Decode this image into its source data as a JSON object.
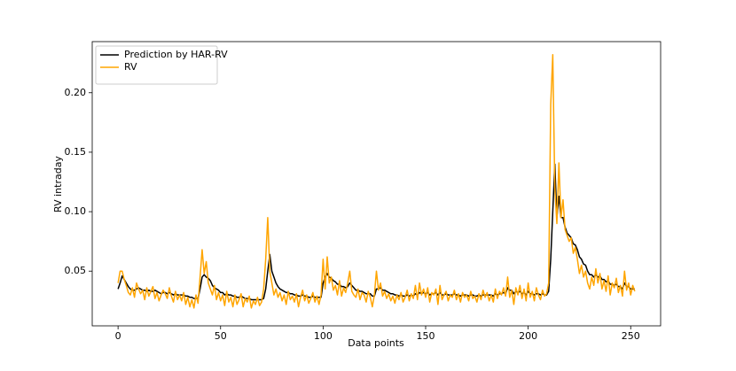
{
  "chart_data": {
    "type": "line",
    "xlabel": "Data points",
    "ylabel": "RV intraday",
    "legend": "upper left",
    "xlim": [
      -12.6,
      264.6
    ],
    "ylim": [
      0.004,
      0.243
    ],
    "xticks": [
      0,
      50,
      100,
      150,
      200,
      250
    ],
    "yticks": [
      0.05,
      {
        "value": 0.1,
        "label": "0.10"
      },
      0.15,
      {
        "value": 0.2,
        "label": "0.20"
      }
    ],
    "x": [
      0,
      1,
      2,
      3,
      4,
      5,
      6,
      7,
      8,
      9,
      10,
      11,
      12,
      13,
      14,
      15,
      16,
      17,
      18,
      19,
      20,
      21,
      22,
      23,
      24,
      25,
      26,
      27,
      28,
      29,
      30,
      31,
      32,
      33,
      34,
      35,
      36,
      37,
      38,
      39,
      40,
      41,
      42,
      43,
      44,
      45,
      46,
      47,
      48,
      49,
      50,
      51,
      52,
      53,
      54,
      55,
      56,
      57,
      58,
      59,
      60,
      61,
      62,
      63,
      64,
      65,
      66,
      67,
      68,
      69,
      70,
      71,
      72,
      73,
      74,
      75,
      76,
      77,
      78,
      79,
      80,
      81,
      82,
      83,
      84,
      85,
      86,
      87,
      88,
      89,
      90,
      91,
      92,
      93,
      94,
      95,
      96,
      97,
      98,
      99,
      100,
      101,
      102,
      103,
      104,
      105,
      106,
      107,
      108,
      109,
      110,
      111,
      112,
      113,
      114,
      115,
      116,
      117,
      118,
      119,
      120,
      121,
      122,
      123,
      124,
      125,
      126,
      127,
      128,
      129,
      130,
      131,
      132,
      133,
      134,
      135,
      136,
      137,
      138,
      139,
      140,
      141,
      142,
      143,
      144,
      145,
      146,
      147,
      148,
      149,
      150,
      151,
      152,
      153,
      154,
      155,
      156,
      157,
      158,
      159,
      160,
      161,
      162,
      163,
      164,
      165,
      166,
      167,
      168,
      169,
      170,
      171,
      172,
      173,
      174,
      175,
      176,
      177,
      178,
      179,
      180,
      181,
      182,
      183,
      184,
      185,
      186,
      187,
      188,
      189,
      190,
      191,
      192,
      193,
      194,
      195,
      196,
      197,
      198,
      199,
      200,
      201,
      202,
      203,
      204,
      205,
      206,
      207,
      208,
      209,
      210,
      211,
      212,
      213,
      214,
      215,
      216,
      217,
      218,
      219,
      220,
      221,
      222,
      223,
      224,
      225,
      226,
      227,
      228,
      229,
      230,
      231,
      232,
      233,
      234,
      235,
      236,
      237,
      238,
      239,
      240,
      241,
      242,
      243,
      244,
      245,
      246,
      247,
      248,
      249,
      250,
      251,
      252
    ],
    "series": [
      {
        "name": "Prediction by HAR-RV",
        "color": "#000000",
        "values": [
          0.035,
          0.04,
          0.046,
          0.043,
          0.04,
          0.037,
          0.035,
          0.034,
          0.034,
          0.035,
          0.036,
          0.035,
          0.034,
          0.034,
          0.033,
          0.034,
          0.033,
          0.033,
          0.034,
          0.033,
          0.032,
          0.031,
          0.032,
          0.032,
          0.031,
          0.032,
          0.031,
          0.03,
          0.031,
          0.03,
          0.03,
          0.03,
          0.03,
          0.029,
          0.029,
          0.028,
          0.028,
          0.027,
          0.027,
          0.027,
          0.035,
          0.045,
          0.047,
          0.045,
          0.044,
          0.042,
          0.038,
          0.036,
          0.035,
          0.034,
          0.032,
          0.032,
          0.03,
          0.031,
          0.03,
          0.03,
          0.029,
          0.029,
          0.028,
          0.028,
          0.029,
          0.028,
          0.027,
          0.027,
          0.027,
          0.026,
          0.026,
          0.026,
          0.026,
          0.026,
          0.026,
          0.027,
          0.035,
          0.05,
          0.064,
          0.05,
          0.045,
          0.04,
          0.037,
          0.035,
          0.034,
          0.033,
          0.032,
          0.032,
          0.031,
          0.031,
          0.03,
          0.03,
          0.029,
          0.029,
          0.03,
          0.029,
          0.029,
          0.028,
          0.028,
          0.029,
          0.028,
          0.028,
          0.028,
          0.028,
          0.04,
          0.045,
          0.048,
          0.045,
          0.044,
          0.042,
          0.041,
          0.039,
          0.039,
          0.037,
          0.037,
          0.036,
          0.037,
          0.04,
          0.038,
          0.036,
          0.034,
          0.034,
          0.033,
          0.033,
          0.032,
          0.031,
          0.031,
          0.031,
          0.029,
          0.029,
          0.035,
          0.035,
          0.036,
          0.034,
          0.034,
          0.033,
          0.032,
          0.031,
          0.031,
          0.03,
          0.03,
          0.029,
          0.03,
          0.029,
          0.029,
          0.03,
          0.029,
          0.03,
          0.029,
          0.031,
          0.03,
          0.032,
          0.031,
          0.032,
          0.031,
          0.032,
          0.03,
          0.031,
          0.031,
          0.032,
          0.03,
          0.032,
          0.03,
          0.03,
          0.031,
          0.03,
          0.03,
          0.03,
          0.031,
          0.03,
          0.03,
          0.029,
          0.03,
          0.03,
          0.03,
          0.029,
          0.03,
          0.03,
          0.029,
          0.029,
          0.03,
          0.029,
          0.03,
          0.03,
          0.03,
          0.03,
          0.03,
          0.029,
          0.031,
          0.03,
          0.031,
          0.031,
          0.032,
          0.031,
          0.036,
          0.034,
          0.034,
          0.031,
          0.033,
          0.032,
          0.033,
          0.031,
          0.032,
          0.03,
          0.033,
          0.031,
          0.031,
          0.03,
          0.031,
          0.031,
          0.03,
          0.031,
          0.03,
          0.03,
          0.033,
          0.06,
          0.1,
          0.14,
          0.095,
          0.113,
          0.095,
          0.095,
          0.087,
          0.082,
          0.08,
          0.078,
          0.073,
          0.072,
          0.068,
          0.062,
          0.06,
          0.056,
          0.055,
          0.05,
          0.047,
          0.047,
          0.045,
          0.047,
          0.045,
          0.046,
          0.043,
          0.043,
          0.041,
          0.042,
          0.039,
          0.039,
          0.038,
          0.039,
          0.037,
          0.037,
          0.035,
          0.04,
          0.037,
          0.037,
          0.035,
          0.035,
          0.035
        ]
      },
      {
        "name": "RV",
        "color": "#ffa500",
        "values": [
          0.04,
          0.05,
          0.05,
          0.043,
          0.038,
          0.032,
          0.03,
          0.036,
          0.028,
          0.04,
          0.035,
          0.031,
          0.034,
          0.026,
          0.036,
          0.029,
          0.033,
          0.037,
          0.027,
          0.032,
          0.025,
          0.03,
          0.034,
          0.031,
          0.027,
          0.036,
          0.029,
          0.024,
          0.033,
          0.026,
          0.03,
          0.025,
          0.032,
          0.022,
          0.028,
          0.02,
          0.026,
          0.019,
          0.03,
          0.023,
          0.045,
          0.068,
          0.048,
          0.058,
          0.04,
          0.035,
          0.03,
          0.038,
          0.026,
          0.032,
          0.025,
          0.03,
          0.021,
          0.033,
          0.024,
          0.028,
          0.02,
          0.03,
          0.022,
          0.026,
          0.031,
          0.02,
          0.027,
          0.024,
          0.029,
          0.019,
          0.025,
          0.022,
          0.028,
          0.021,
          0.024,
          0.035,
          0.06,
          0.095,
          0.05,
          0.04,
          0.03,
          0.035,
          0.028,
          0.032,
          0.025,
          0.03,
          0.022,
          0.033,
          0.026,
          0.029,
          0.024,
          0.031,
          0.02,
          0.028,
          0.034,
          0.025,
          0.03,
          0.023,
          0.027,
          0.032,
          0.024,
          0.029,
          0.022,
          0.03,
          0.06,
          0.035,
          0.062,
          0.04,
          0.045,
          0.034,
          0.038,
          0.03,
          0.042,
          0.029,
          0.036,
          0.032,
          0.04,
          0.05,
          0.033,
          0.03,
          0.028,
          0.035,
          0.026,
          0.032,
          0.03,
          0.024,
          0.033,
          0.028,
          0.02,
          0.03,
          0.05,
          0.034,
          0.04,
          0.029,
          0.033,
          0.027,
          0.031,
          0.025,
          0.029,
          0.023,
          0.03,
          0.026,
          0.032,
          0.024,
          0.028,
          0.034,
          0.025,
          0.031,
          0.027,
          0.038,
          0.026,
          0.04,
          0.03,
          0.035,
          0.028,
          0.036,
          0.024,
          0.032,
          0.03,
          0.035,
          0.022,
          0.038,
          0.026,
          0.03,
          0.033,
          0.025,
          0.03,
          0.028,
          0.034,
          0.026,
          0.031,
          0.024,
          0.032,
          0.028,
          0.03,
          0.025,
          0.033,
          0.027,
          0.029,
          0.024,
          0.031,
          0.026,
          0.034,
          0.028,
          0.032,
          0.025,
          0.03,
          0.024,
          0.035,
          0.027,
          0.033,
          0.03,
          0.036,
          0.029,
          0.045,
          0.028,
          0.034,
          0.022,
          0.036,
          0.03,
          0.038,
          0.027,
          0.035,
          0.025,
          0.04,
          0.028,
          0.033,
          0.025,
          0.036,
          0.03,
          0.026,
          0.034,
          0.029,
          0.031,
          0.04,
          0.19,
          0.232,
          0.12,
          0.09,
          0.141,
          0.095,
          0.11,
          0.085,
          0.08,
          0.075,
          0.078,
          0.065,
          0.07,
          0.06,
          0.048,
          0.055,
          0.045,
          0.05,
          0.04,
          0.035,
          0.045,
          0.038,
          0.052,
          0.04,
          0.048,
          0.035,
          0.042,
          0.033,
          0.046,
          0.03,
          0.04,
          0.036,
          0.044,
          0.032,
          0.038,
          0.029,
          0.05,
          0.034,
          0.04,
          0.03,
          0.038,
          0.033
        ]
      }
    ]
  }
}
